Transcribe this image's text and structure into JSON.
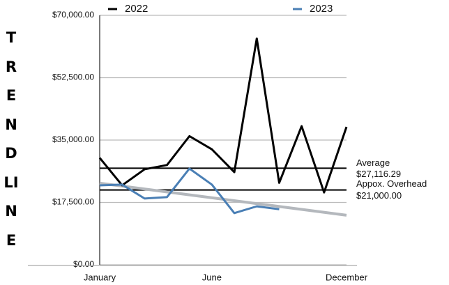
{
  "chart_data": {
    "type": "line",
    "side_title": "TRENDLINE",
    "categories": [
      "January",
      null,
      null,
      null,
      null,
      "June",
      null,
      null,
      null,
      null,
      null,
      "December"
    ],
    "series": [
      {
        "name": "2022",
        "color": "#000000",
        "values": [
          30000,
          22300,
          26800,
          28000,
          36100,
          32400,
          26000,
          63500,
          23000,
          38900,
          20300,
          38700
        ]
      },
      {
        "name": "2023",
        "color": "#4a7fb5",
        "values": [
          22300,
          22500,
          18600,
          19000,
          27000,
          22500,
          14500,
          16400,
          15600,
          null,
          null,
          null
        ]
      }
    ],
    "trendline": {
      "color": "#b4b8bd",
      "values": [
        22900,
        13900
      ]
    },
    "reference_lines": [
      {
        "label": "Average",
        "value": 27116.29,
        "value_label": "$27,116.29"
      },
      {
        "label": "Appox. Overhead",
        "value": 21000,
        "value_label": "$21,000.00"
      }
    ],
    "ylim": [
      0,
      70000
    ],
    "yticks": [
      {
        "value": 0,
        "label": "$0.00"
      },
      {
        "value": 17500,
        "label": "$17,500.00"
      },
      {
        "value": 35000,
        "label": "$35,000.00"
      },
      {
        "value": 52500,
        "label": "$52,500.00"
      },
      {
        "value": 70000,
        "label": "$70,000.00"
      }
    ],
    "grid": true,
    "legend": "top"
  }
}
